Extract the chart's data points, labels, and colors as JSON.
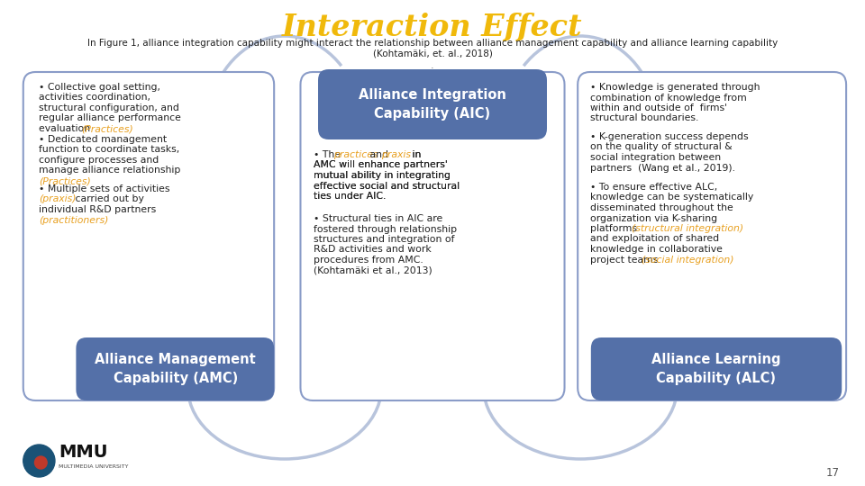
{
  "title": "Interaction Effect",
  "title_color": "#F0B90B",
  "subtitle_line1": "In Figure 1, alliance integration capability might interact the relationship between alliance management capability and alliance learning capability",
  "subtitle_line2": "(Kohtamäki, et. al., 2018)",
  "subtitle_color": "#222222",
  "bg_color": "#FFFFFF",
  "box_border_color": "#8A9CC8",
  "box_fill_color": "#FFFFFF",
  "dark_box_color": "#5470A8",
  "highlight_color": "#E8A020",
  "text_color": "#222222",
  "page_number": "17",
  "fs_body": 7.8,
  "fs_label": 10.5,
  "left": {
    "b1_normal": [
      "• Collective goal setting,",
      "activities coordination,",
      "structural configuration, and",
      "regular alliance performance",
      "evaluation "
    ],
    "b1_hi": "(Practices)",
    "b2_normal": [
      "• Dedicated management",
      "function to coordinate tasks,",
      "configure processes and",
      "manage alliance relationship"
    ],
    "b2_hi": "(Practices)",
    "b3_line1": "• Multiple sets of activities",
    "b3_hi1": "(praxis)",
    "b3_mid": " carried out by",
    "b3_line3": "individual R&D partners",
    "b3_hi2": "(practitioners)",
    "label": "Alliance Management\nCapability (AMC)"
  },
  "center": {
    "label": "Alliance Integration\nCapability (AIC)",
    "b1_pre": "• The ",
    "b1_h1": "practices",
    "b1_and": " and ",
    "b1_h2": "praxis",
    "b1_post": [
      " in",
      "AMC will enhance partners'",
      "mutual ability in integrating",
      "effective social and structural",
      "ties under AIC."
    ],
    "b2": [
      "• Structural ties in AIC are",
      "fostered through relationship",
      "structures and integration of",
      "R&D activities and work",
      "procedures from AMC.",
      "(Kohtamäki et al., 2013)"
    ]
  },
  "right": {
    "b1": [
      "• Knowledge is generated through",
      "combination of knowledge from",
      "within and outside of  firms'",
      "structural boundaries."
    ],
    "b2": [
      "• K-generation success depends",
      "on the quality of structural &",
      "social integration between",
      "partners  (Wang et al., 2019)."
    ],
    "b3_pre": [
      "• To ensure effective ALC,",
      "knowledge can be systematically",
      "disseminated throughout the",
      "organization via K-sharing",
      "platforms "
    ],
    "b3_h1": "(structural integration)",
    "b3_mid": [
      "and exploitation of shared",
      "knowledge in collaborative",
      "project teams "
    ],
    "b3_h2": "(social integration)",
    "label": "Alliance Learning\nCapability (ALC)"
  }
}
